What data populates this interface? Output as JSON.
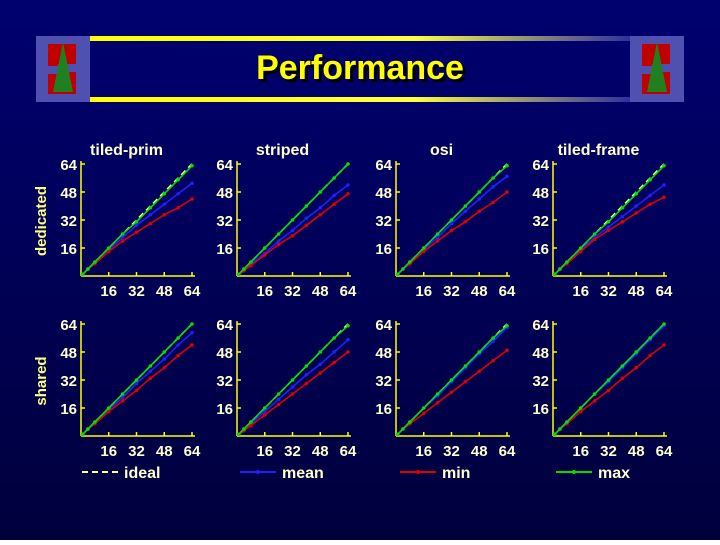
{
  "header": {
    "title": "Performance"
  },
  "legend": [
    {
      "name": "ideal"
    },
    {
      "name": "mean"
    },
    {
      "name": "min"
    },
    {
      "name": "max"
    }
  ],
  "chart_data": [
    {
      "type": "line",
      "title": "tiled-prim",
      "ylabel": "dedicated",
      "x": [
        1,
        4,
        8,
        16,
        24,
        32,
        40,
        48,
        56,
        64
      ],
      "xlim": [
        0,
        64
      ],
      "ylim": [
        0,
        64
      ],
      "xticks": [
        16,
        32,
        48,
        64
      ],
      "yticks": [
        16,
        32,
        48,
        64
      ],
      "series": [
        {
          "color": "#ffff80",
          "dash": true,
          "values": [
            1,
            4,
            8,
            16,
            24,
            32,
            40,
            48,
            56,
            64
          ]
        },
        {
          "color": "#2020ff",
          "values": [
            1,
            4,
            8,
            15,
            22,
            29,
            35,
            41,
            47,
            53
          ]
        },
        {
          "color": "#e00000",
          "values": [
            1,
            4,
            7,
            14,
            20,
            25,
            30,
            35,
            39,
            44
          ]
        },
        {
          "color": "#00e000",
          "values": [
            1,
            4,
            8,
            16,
            24,
            31,
            39,
            47,
            55,
            63
          ]
        }
      ]
    },
    {
      "type": "line",
      "title": "striped",
      "x": [
        1,
        4,
        8,
        16,
        24,
        32,
        40,
        48,
        56,
        64
      ],
      "xlim": [
        0,
        64
      ],
      "ylim": [
        0,
        64
      ],
      "xticks": [
        16,
        32,
        48,
        64
      ],
      "yticks": [
        16,
        32,
        48,
        64
      ],
      "series": [
        {
          "color": "#ffff80",
          "dash": true,
          "values": [
            1,
            4,
            8,
            16,
            24,
            32,
            40,
            48,
            56,
            64
          ]
        },
        {
          "color": "#2020ff",
          "values": [
            1,
            4,
            7,
            13,
            20,
            26,
            33,
            39,
            46,
            52
          ]
        },
        {
          "color": "#e00000",
          "values": [
            1,
            3,
            6,
            12,
            18,
            23,
            29,
            35,
            41,
            47
          ]
        },
        {
          "color": "#00e000",
          "values": [
            1,
            4,
            8,
            16,
            24,
            32,
            40,
            48,
            56,
            64
          ]
        }
      ]
    },
    {
      "type": "line",
      "title": "osi",
      "x": [
        1,
        4,
        8,
        16,
        24,
        32,
        40,
        48,
        56,
        64
      ],
      "xlim": [
        0,
        64
      ],
      "ylim": [
        0,
        64
      ],
      "xticks": [
        16,
        32,
        48,
        64
      ],
      "yticks": [
        16,
        32,
        48,
        64
      ],
      "series": [
        {
          "color": "#ffff80",
          "dash": true,
          "values": [
            1,
            4,
            8,
            16,
            24,
            32,
            40,
            48,
            56,
            64
          ]
        },
        {
          "color": "#2020ff",
          "values": [
            1,
            4,
            8,
            15,
            22,
            30,
            37,
            44,
            51,
            57
          ]
        },
        {
          "color": "#e00000",
          "values": [
            1,
            4,
            7,
            14,
            20,
            26,
            31,
            37,
            42,
            48
          ]
        },
        {
          "color": "#00e000",
          "values": [
            1,
            4,
            8,
            16,
            24,
            32,
            40,
            48,
            56,
            63
          ]
        }
      ]
    },
    {
      "type": "line",
      "title": "tiled-frame",
      "x": [
        1,
        4,
        8,
        16,
        24,
        32,
        40,
        48,
        56,
        64
      ],
      "xlim": [
        0,
        64
      ],
      "ylim": [
        0,
        64
      ],
      "xticks": [
        16,
        32,
        48,
        64
      ],
      "yticks": [
        16,
        32,
        48,
        64
      ],
      "series": [
        {
          "color": "#ffff80",
          "dash": true,
          "values": [
            1,
            4,
            8,
            16,
            24,
            32,
            40,
            48,
            56,
            64
          ]
        },
        {
          "color": "#2020ff",
          "values": [
            1,
            4,
            8,
            15,
            22,
            28,
            34,
            40,
            46,
            52
          ]
        },
        {
          "color": "#e00000",
          "values": [
            1,
            4,
            7,
            14,
            21,
            26,
            31,
            36,
            41,
            45
          ]
        },
        {
          "color": "#00e000",
          "values": [
            1,
            4,
            8,
            16,
            24,
            31,
            39,
            47,
            55,
            63
          ]
        }
      ]
    },
    {
      "type": "line",
      "ylabel": "shared",
      "x": [
        1,
        4,
        8,
        16,
        24,
        32,
        40,
        48,
        56,
        64
      ],
      "xlim": [
        0,
        64
      ],
      "ylim": [
        0,
        64
      ],
      "xticks": [
        16,
        32,
        48,
        64
      ],
      "yticks": [
        16,
        32,
        48,
        64
      ],
      "series": [
        {
          "color": "#ffff80",
          "dash": true,
          "values": [
            1,
            4,
            8,
            16,
            24,
            32,
            40,
            48,
            56,
            64
          ]
        },
        {
          "color": "#2020ff",
          "values": [
            1,
            4,
            8,
            15,
            22,
            30,
            37,
            44,
            52,
            59
          ]
        },
        {
          "color": "#e00000",
          "values": [
            1,
            4,
            7,
            14,
            20,
            26,
            33,
            39,
            46,
            52
          ]
        },
        {
          "color": "#00e000",
          "values": [
            1,
            4,
            8,
            16,
            24,
            32,
            40,
            48,
            56,
            64
          ]
        }
      ]
    },
    {
      "type": "line",
      "x": [
        1,
        4,
        8,
        16,
        24,
        32,
        40,
        48,
        56,
        64
      ],
      "xlim": [
        0,
        64
      ],
      "ylim": [
        0,
        64
      ],
      "xticks": [
        16,
        32,
        48,
        64
      ],
      "yticks": [
        16,
        32,
        48,
        64
      ],
      "series": [
        {
          "color": "#ffff80",
          "dash": true,
          "values": [
            1,
            4,
            8,
            16,
            24,
            32,
            40,
            48,
            56,
            64
          ]
        },
        {
          "color": "#2020ff",
          "values": [
            1,
            4,
            7,
            14,
            21,
            28,
            35,
            41,
            48,
            55
          ]
        },
        {
          "color": "#e00000",
          "values": [
            1,
            3,
            6,
            12,
            18,
            24,
            30,
            36,
            42,
            48
          ]
        },
        {
          "color": "#00e000",
          "values": [
            1,
            4,
            8,
            16,
            24,
            32,
            40,
            48,
            56,
            63
          ]
        }
      ]
    },
    {
      "type": "line",
      "x": [
        1,
        4,
        8,
        16,
        24,
        32,
        40,
        48,
        56,
        64
      ],
      "xlim": [
        0,
        64
      ],
      "ylim": [
        0,
        64
      ],
      "xticks": [
        16,
        32,
        48,
        64
      ],
      "yticks": [
        16,
        32,
        48,
        64
      ],
      "series": [
        {
          "color": "#ffff80",
          "dash": true,
          "values": [
            1,
            4,
            8,
            16,
            24,
            32,
            40,
            48,
            56,
            64
          ]
        },
        {
          "color": "#2020ff",
          "values": [
            1,
            4,
            8,
            16,
            23,
            31,
            39,
            47,
            54,
            62
          ]
        },
        {
          "color": "#e00000",
          "values": [
            1,
            4,
            7,
            13,
            19,
            25,
            31,
            37,
            43,
            49
          ]
        },
        {
          "color": "#00e000",
          "values": [
            1,
            4,
            8,
            16,
            24,
            32,
            40,
            48,
            56,
            63
          ]
        }
      ]
    },
    {
      "type": "line",
      "x": [
        1,
        4,
        8,
        16,
        24,
        32,
        40,
        48,
        56,
        64
      ],
      "xlim": [
        0,
        64
      ],
      "ylim": [
        0,
        64
      ],
      "xticks": [
        16,
        32,
        48,
        64
      ],
      "yticks": [
        16,
        32,
        48,
        64
      ],
      "series": [
        {
          "color": "#ffff80",
          "dash": true,
          "values": [
            1,
            4,
            8,
            16,
            24,
            32,
            40,
            48,
            56,
            64
          ]
        },
        {
          "color": "#2020ff",
          "values": [
            1,
            4,
            8,
            16,
            24,
            31,
            39,
            47,
            55,
            63
          ]
        },
        {
          "color": "#e00000",
          "values": [
            1,
            4,
            7,
            14,
            20,
            26,
            33,
            39,
            46,
            52
          ]
        },
        {
          "color": "#00e000",
          "values": [
            1,
            4,
            8,
            16,
            24,
            32,
            40,
            48,
            56,
            64
          ]
        }
      ]
    }
  ]
}
